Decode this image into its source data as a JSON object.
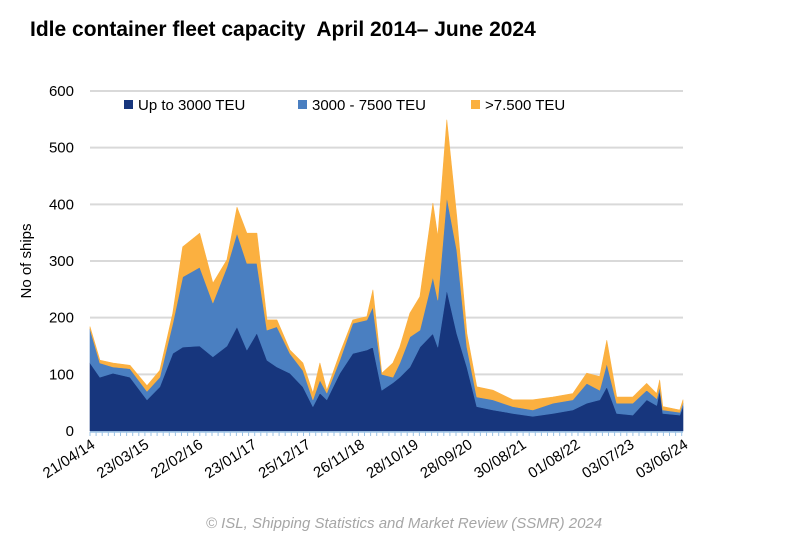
{
  "chart_data": {
    "type": "area",
    "stacked": true,
    "title": "Idle container fleet capacity  April 2014– June 2024",
    "ylabel": "No of ships",
    "xlabel": "",
    "ylim": [
      0,
      600
    ],
    "yticks": [
      0,
      100,
      200,
      300,
      400,
      500,
      600
    ],
    "grid": true,
    "legend_position": "top",
    "xtick_labels": [
      "21/04/14",
      "23/03/15",
      "22/02/16",
      "23/01/17",
      "25/12/17",
      "26/11/18",
      "28/10/19",
      "28/09/20",
      "30/08/21",
      "01/08/22",
      "03/07/23",
      "03/06/24"
    ],
    "x": [
      "2014-04-21",
      "2014-06-22",
      "2014-09-11",
      "2014-12-26",
      "2015-04-11",
      "2015-06-30",
      "2015-09-19",
      "2015-11-20",
      "2016-03-05",
      "2016-05-26",
      "2016-08-21",
      "2016-10-23",
      "2016-12-24",
      "2017-02-24",
      "2017-04-28",
      "2017-06-29",
      "2017-09-18",
      "2017-12-08",
      "2018-02-08",
      "2018-03-24",
      "2018-05-06",
      "2018-07-26",
      "2018-10-15",
      "2019-01-11",
      "2019-02-17",
      "2019-04-14",
      "2019-06-22",
      "2019-08-04",
      "2019-10-06",
      "2019-12-07",
      "2020-02-26",
      "2020-03-28",
      "2020-05-23",
      "2020-07-24",
      "2020-09-25",
      "2020-11-26",
      "2021-03-06",
      "2021-07-08",
      "2021-11-10",
      "2022-03-15",
      "2022-07-17",
      "2022-10-12",
      "2023-01-01",
      "2023-02-14",
      "2023-04-17",
      "2023-07-26",
      "2023-10-21",
      "2023-12-22",
      "2024-01-10",
      "2024-01-29",
      "2024-05-14",
      "2024-06-03"
    ],
    "series": [
      {
        "name": "Up to 3000 TEU",
        "color": "#17367d",
        "values": [
          120,
          95,
          102,
          95,
          55,
          78,
          137,
          148,
          150,
          131,
          150,
          184,
          143,
          173,
          125,
          113,
          102,
          78,
          43,
          67,
          55,
          102,
          137,
          143,
          148,
          72,
          85,
          95,
          113,
          148,
          172,
          148,
          249,
          172,
          113,
          43,
          37,
          31,
          26,
          31,
          37,
          49,
          55,
          78,
          31,
          28,
          55,
          45,
          72,
          31,
          28,
          43
        ]
      },
      {
        "name": "3000 - 7500 TEU",
        "color": "#4a7fc1",
        "values": [
          60,
          25,
          11,
          15,
          15,
          17,
          53,
          124,
          139,
          95,
          139,
          165,
          153,
          123,
          53,
          71,
          35,
          29,
          12,
          23,
          12,
          23,
          53,
          53,
          71,
          28,
          10,
          25,
          53,
          30,
          100,
          83,
          164,
          147,
          35,
          17,
          18,
          12,
          11,
          18,
          18,
          35,
          17,
          41,
          18,
          21,
          17,
          12,
          6,
          6,
          5,
          6
        ]
      },
      {
        "name": ">7.500 TEU",
        "color": "#fbb040",
        "values": [
          4,
          5,
          7,
          6,
          10,
          12,
          18,
          53,
          60,
          35,
          13,
          46,
          53,
          53,
          18,
          12,
          6,
          13,
          12,
          30,
          5,
          12,
          6,
          6,
          30,
          2,
          25,
          28,
          42,
          59,
          130,
          112,
          136,
          59,
          24,
          18,
          17,
          12,
          18,
          11,
          11,
          18,
          24,
          41,
          11,
          11,
          12,
          9,
          12,
          6,
          4,
          6
        ]
      }
    ]
  },
  "footer": "© ISL, Shipping Statistics and Market Review (SSMR) 2024"
}
